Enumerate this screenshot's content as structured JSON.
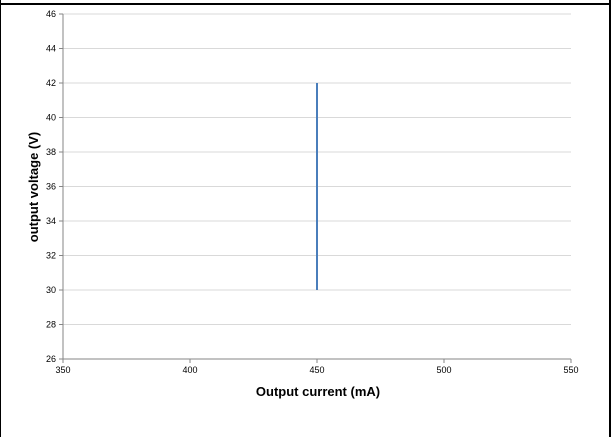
{
  "chart_data": {
    "type": "line",
    "title": "",
    "xlabel": "Output current (mA)",
    "ylabel": "output voltage (V)",
    "xlim": [
      350,
      550
    ],
    "ylim": [
      26,
      46
    ],
    "x_ticks": [
      350,
      400,
      450,
      500,
      550
    ],
    "y_ticks": [
      26,
      28,
      30,
      32,
      34,
      36,
      38,
      40,
      42,
      44,
      46
    ],
    "grid": true,
    "legend": "none",
    "series": [
      {
        "points": [
          [
            450,
            30
          ],
          [
            450,
            42
          ]
        ],
        "color": "#4a7ebb"
      }
    ],
    "colors": {
      "grid": "#d9d9d9",
      "axis": "#868686",
      "series": "#4a7ebb"
    }
  }
}
